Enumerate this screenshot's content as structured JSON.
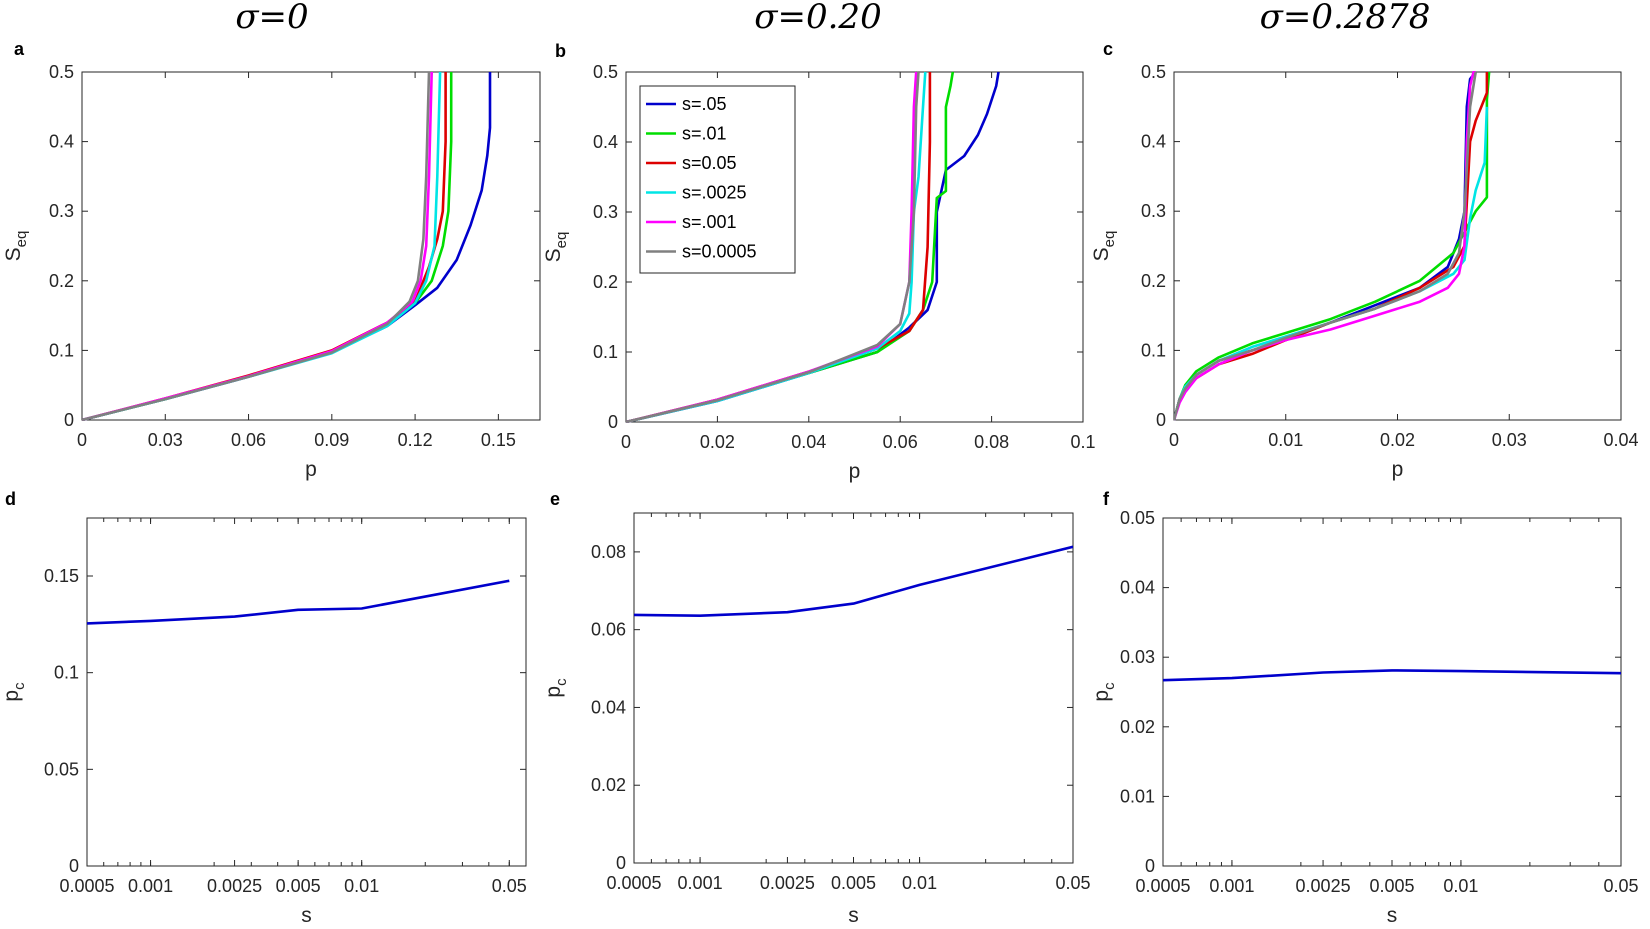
{
  "colors": {
    "blue": "#0000cc",
    "green": "#00dd00",
    "red": "#dd0000",
    "cyan": "#00e5e5",
    "magenta": "#ff00ff",
    "gray": "#808080",
    "axis": "#262626"
  },
  "chart_data": [
    {
      "id": "a",
      "letter": "a",
      "type": "line",
      "title": "σ=0",
      "xlabel": "p",
      "ylabel": "S",
      "ylabel_sub": "eq",
      "xlim": [
        0,
        0.165
      ],
      "ylim": [
        0,
        0.5
      ],
      "xticks": [
        0,
        0.03,
        0.06,
        0.09,
        0.12,
        0.15
      ],
      "xticklabels": [
        "0",
        "0.03",
        "0.06",
        "0.09",
        "0.12",
        "0.15"
      ],
      "yticks": [
        0,
        0.1,
        0.2,
        0.3,
        0.4,
        0.5
      ],
      "yticklabels": [
        "0",
        "0.1",
        "0.2",
        "0.3",
        "0.4",
        "0.5"
      ],
      "series": [
        {
          "name": "s=.05",
          "color": "blue",
          "x": [
            0,
            0.03,
            0.06,
            0.09,
            0.11,
            0.12,
            0.128,
            0.135,
            0.14,
            0.144,
            0.146,
            0.147,
            0.147
          ],
          "y": [
            0,
            0.03,
            0.062,
            0.097,
            0.135,
            0.165,
            0.19,
            0.23,
            0.28,
            0.33,
            0.38,
            0.42,
            0.5
          ]
        },
        {
          "name": "s=.01",
          "color": "green",
          "x": [
            0,
            0.03,
            0.06,
            0.09,
            0.11,
            0.12,
            0.126,
            0.13,
            0.132,
            0.133,
            0.133
          ],
          "y": [
            0,
            0.03,
            0.063,
            0.098,
            0.138,
            0.168,
            0.2,
            0.25,
            0.3,
            0.4,
            0.5
          ]
        },
        {
          "name": "s=0.05",
          "color": "red",
          "x": [
            0,
            0.03,
            0.06,
            0.09,
            0.11,
            0.12,
            0.125,
            0.128,
            0.13,
            0.131,
            0.131
          ],
          "y": [
            0,
            0.031,
            0.064,
            0.1,
            0.14,
            0.17,
            0.22,
            0.26,
            0.3,
            0.4,
            0.5
          ]
        },
        {
          "name": "s=.0025",
          "color": "cyan",
          "x": [
            0,
            0.03,
            0.06,
            0.09,
            0.11,
            0.12,
            0.124,
            0.127,
            0.128,
            0.129
          ],
          "y": [
            0,
            0.03,
            0.062,
            0.096,
            0.135,
            0.168,
            0.2,
            0.25,
            0.35,
            0.5
          ]
        },
        {
          "name": "s=.001",
          "color": "magenta",
          "x": [
            0,
            0.03,
            0.06,
            0.09,
            0.11,
            0.119,
            0.122,
            0.124,
            0.125,
            0.126
          ],
          "y": [
            0,
            0.031,
            0.063,
            0.099,
            0.14,
            0.17,
            0.2,
            0.25,
            0.35,
            0.5
          ]
        },
        {
          "name": "s=0.0005",
          "color": "gray",
          "x": [
            0,
            0.03,
            0.06,
            0.09,
            0.11,
            0.118,
            0.121,
            0.123,
            0.124,
            0.125
          ],
          "y": [
            0,
            0.03,
            0.062,
            0.097,
            0.138,
            0.17,
            0.2,
            0.26,
            0.35,
            0.5
          ]
        }
      ]
    },
    {
      "id": "b",
      "letter": "b",
      "type": "line",
      "title": "σ=0.20",
      "xlabel": "p",
      "ylabel": "S",
      "ylabel_sub": "eq",
      "xlim": [
        0,
        0.1
      ],
      "ylim": [
        0,
        0.5
      ],
      "xticks": [
        0,
        0.02,
        0.04,
        0.06,
        0.08,
        0.1
      ],
      "xticklabels": [
        "0",
        "0.02",
        "0.04",
        "0.06",
        "0.08",
        "0.1"
      ],
      "yticks": [
        0,
        0.1,
        0.2,
        0.3,
        0.4,
        0.5
      ],
      "yticklabels": [
        "0",
        "0.1",
        "0.2",
        "0.3",
        "0.4",
        "0.5"
      ],
      "legend": {
        "location": "top-left",
        "entries": [
          "s=.05",
          "s=.01",
          "s=0.05",
          "s=.0025",
          "s=.001",
          "s=0.0005"
        ]
      },
      "series": [
        {
          "name": "s=.05",
          "color": "blue",
          "x": [
            0,
            0.02,
            0.04,
            0.055,
            0.062,
            0.066,
            0.068,
            0.068,
            0.07,
            0.074,
            0.077,
            0.079,
            0.08,
            0.081,
            0.0815
          ],
          "y": [
            0,
            0.03,
            0.07,
            0.1,
            0.135,
            0.16,
            0.2,
            0.3,
            0.36,
            0.38,
            0.41,
            0.44,
            0.46,
            0.48,
            0.5
          ]
        },
        {
          "name": "s=.01",
          "color": "green",
          "x": [
            0,
            0.02,
            0.04,
            0.055,
            0.062,
            0.065,
            0.067,
            0.068,
            0.07,
            0.07,
            0.071,
            0.0715
          ],
          "y": [
            0,
            0.031,
            0.07,
            0.1,
            0.13,
            0.16,
            0.2,
            0.32,
            0.33,
            0.45,
            0.48,
            0.5
          ]
        },
        {
          "name": "s=0.05",
          "color": "red",
          "x": [
            0,
            0.02,
            0.04,
            0.055,
            0.062,
            0.065,
            0.066,
            0.0665,
            0.0665
          ],
          "y": [
            0,
            0.032,
            0.072,
            0.105,
            0.13,
            0.16,
            0.25,
            0.4,
            0.5
          ]
        },
        {
          "name": "s=.0025",
          "color": "cyan",
          "x": [
            0,
            0.02,
            0.04,
            0.055,
            0.06,
            0.062,
            0.0625,
            0.063,
            0.064,
            0.065,
            0.0655
          ],
          "y": [
            0,
            0.03,
            0.07,
            0.105,
            0.13,
            0.155,
            0.2,
            0.3,
            0.35,
            0.45,
            0.5
          ]
        },
        {
          "name": "s=.001",
          "color": "magenta",
          "x": [
            0,
            0.02,
            0.04,
            0.055,
            0.06,
            0.062,
            0.0625,
            0.063,
            0.0635
          ],
          "y": [
            0,
            0.032,
            0.072,
            0.108,
            0.14,
            0.2,
            0.3,
            0.45,
            0.5
          ]
        },
        {
          "name": "s=0.0005",
          "color": "gray",
          "x": [
            0,
            0.02,
            0.04,
            0.055,
            0.06,
            0.062,
            0.063,
            0.0635,
            0.064
          ],
          "y": [
            0,
            0.031,
            0.071,
            0.11,
            0.14,
            0.2,
            0.3,
            0.45,
            0.5
          ]
        }
      ]
    },
    {
      "id": "c",
      "letter": "c",
      "type": "line",
      "title": "σ=0.2878",
      "xlabel": "p",
      "ylabel": "S",
      "ylabel_sub": "eq",
      "xlim": [
        0,
        0.04
      ],
      "ylim": [
        0,
        0.5
      ],
      "xticks": [
        0,
        0.01,
        0.02,
        0.03,
        0.04
      ],
      "xticklabels": [
        "0",
        "0.01",
        "0.02",
        "0.03",
        "0.04"
      ],
      "yticks": [
        0,
        0.1,
        0.2,
        0.3,
        0.4,
        0.5
      ],
      "yticklabels": [
        "0",
        "0.1",
        "0.2",
        "0.3",
        "0.4",
        "0.5"
      ],
      "series": [
        {
          "name": "s=.05",
          "color": "blue",
          "x": [
            0,
            0.0005,
            0.001,
            0.002,
            0.004,
            0.007,
            0.01,
            0.014,
            0.018,
            0.022,
            0.0245,
            0.0255,
            0.026,
            0.0262,
            0.0265,
            0.027,
            0.027
          ],
          "y": [
            0,
            0.03,
            0.045,
            0.065,
            0.085,
            0.1,
            0.115,
            0.14,
            0.165,
            0.19,
            0.22,
            0.26,
            0.3,
            0.45,
            0.49,
            0.5,
            0.5
          ]
        },
        {
          "name": "s=.01",
          "color": "green",
          "x": [
            0,
            0.0005,
            0.001,
            0.002,
            0.004,
            0.007,
            0.01,
            0.014,
            0.018,
            0.022,
            0.025,
            0.026,
            0.027,
            0.028,
            0.028,
            0.0282
          ],
          "y": [
            0,
            0.03,
            0.05,
            0.07,
            0.09,
            0.11,
            0.125,
            0.145,
            0.17,
            0.2,
            0.24,
            0.27,
            0.3,
            0.32,
            0.46,
            0.5
          ]
        },
        {
          "name": "s=0.05",
          "color": "red",
          "x": [
            0,
            0.0005,
            0.001,
            0.002,
            0.004,
            0.007,
            0.01,
            0.014,
            0.018,
            0.022,
            0.025,
            0.026,
            0.0265,
            0.027,
            0.0275,
            0.028,
            0.028
          ],
          "y": [
            0,
            0.03,
            0.045,
            0.06,
            0.08,
            0.095,
            0.115,
            0.14,
            0.16,
            0.19,
            0.22,
            0.25,
            0.4,
            0.43,
            0.45,
            0.47,
            0.5
          ]
        },
        {
          "name": "s=.0025",
          "color": "cyan",
          "x": [
            0,
            0.0005,
            0.001,
            0.002,
            0.004,
            0.007,
            0.01,
            0.014,
            0.018,
            0.022,
            0.025,
            0.026,
            0.0265,
            0.027,
            0.0278,
            0.028
          ],
          "y": [
            0,
            0.03,
            0.048,
            0.065,
            0.085,
            0.105,
            0.12,
            0.14,
            0.16,
            0.185,
            0.21,
            0.23,
            0.29,
            0.33,
            0.37,
            0.45
          ]
        },
        {
          "name": "s=.001",
          "color": "magenta",
          "x": [
            0,
            0.0005,
            0.001,
            0.002,
            0.004,
            0.007,
            0.01,
            0.014,
            0.018,
            0.022,
            0.0245,
            0.0255,
            0.026,
            0.0262,
            0.0265,
            0.0268,
            0.027
          ],
          "y": [
            0,
            0.025,
            0.04,
            0.06,
            0.08,
            0.1,
            0.115,
            0.13,
            0.15,
            0.17,
            0.19,
            0.21,
            0.25,
            0.4,
            0.48,
            0.5,
            0.5
          ]
        },
        {
          "name": "s=0.0005",
          "color": "gray",
          "x": [
            0,
            0.0005,
            0.001,
            0.002,
            0.004,
            0.007,
            0.01,
            0.014,
            0.018,
            0.022,
            0.0245,
            0.0255,
            0.026,
            0.0265,
            0.027
          ],
          "y": [
            0,
            0.03,
            0.045,
            0.065,
            0.085,
            0.1,
            0.118,
            0.14,
            0.16,
            0.185,
            0.21,
            0.24,
            0.3,
            0.45,
            0.5
          ]
        }
      ]
    },
    {
      "id": "d",
      "letter": "d",
      "type": "line",
      "xscale": "log",
      "xlabel": "s",
      "ylabel": "p",
      "ylabel_sub": "c",
      "xlim": [
        0.0005,
        0.06
      ],
      "ylim": [
        0,
        0.18
      ],
      "xticks": [
        0.0005,
        0.001,
        0.0025,
        0.005,
        0.01,
        0.05
      ],
      "xticklabels": [
        "0.0005",
        "0.001",
        "0.0025",
        "0.005",
        "0.01",
        "0.05"
      ],
      "yticks": [
        0,
        0.05,
        0.1,
        0.15
      ],
      "yticklabels": [
        "0",
        "0.05",
        "0.1",
        "0.15"
      ],
      "series": [
        {
          "name": "p_c",
          "color": "blue",
          "x": [
            0.0005,
            0.001,
            0.0025,
            0.005,
            0.01,
            0.05
          ],
          "y": [
            0.1255,
            0.1268,
            0.129,
            0.1325,
            0.1332,
            0.1475
          ]
        }
      ]
    },
    {
      "id": "e",
      "letter": "e",
      "type": "line",
      "xscale": "log",
      "xlabel": "s",
      "ylabel": "p",
      "ylabel_sub": "c",
      "xlim": [
        0.0005,
        0.05
      ],
      "ylim": [
        0,
        0.09
      ],
      "xticks": [
        0.0005,
        0.001,
        0.0025,
        0.005,
        0.01,
        0.05
      ],
      "xticklabels": [
        "0.0005",
        "0.001",
        "0.0025",
        "0.005",
        "0.01",
        "0.05"
      ],
      "yticks": [
        0,
        0.02,
        0.04,
        0.06,
        0.08
      ],
      "yticklabels": [
        "0",
        "0.02",
        "0.04",
        "0.06",
        "0.08"
      ],
      "series": [
        {
          "name": "p_c",
          "color": "blue",
          "x": [
            0.0005,
            0.001,
            0.0025,
            0.005,
            0.01,
            0.05
          ],
          "y": [
            0.0638,
            0.0636,
            0.0645,
            0.0667,
            0.0715,
            0.0813
          ]
        }
      ]
    },
    {
      "id": "f",
      "letter": "f",
      "type": "line",
      "xscale": "log",
      "xlabel": "s",
      "ylabel": "p",
      "ylabel_sub": "c",
      "xlim": [
        0.0005,
        0.05
      ],
      "ylim": [
        0,
        0.05
      ],
      "xticks": [
        0.0005,
        0.001,
        0.0025,
        0.005,
        0.01,
        0.05
      ],
      "xticklabels": [
        "0.0005",
        "0.001",
        "0.0025",
        "0.005",
        "0.01",
        "0.05"
      ],
      "yticks": [
        0,
        0.01,
        0.02,
        0.03,
        0.04,
        0.05
      ],
      "yticklabels": [
        "0",
        "0.01",
        "0.02",
        "0.03",
        "0.04",
        "0.05"
      ],
      "series": [
        {
          "name": "p_c",
          "color": "blue",
          "x": [
            0.0005,
            0.001,
            0.0025,
            0.005,
            0.01,
            0.05
          ],
          "y": [
            0.0267,
            0.027,
            0.0278,
            0.0281,
            0.028,
            0.0277
          ]
        }
      ]
    }
  ]
}
